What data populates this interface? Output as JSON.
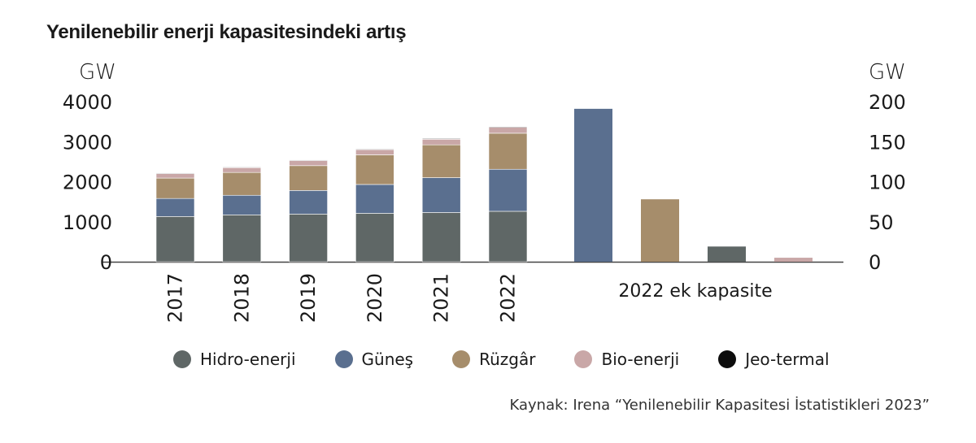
{
  "title": "Yenilenebilir enerji kapasitesindeki artış",
  "source": "Kaynak: Irena “Yenilenebilir Kapasitesi İstatistikleri 2023”",
  "chart_data": {
    "type": "bar",
    "left_axis": {
      "unit": "GW",
      "ylim": [
        0,
        4000
      ],
      "ticks": [
        "0",
        "1000",
        "2000",
        "3000",
        "4000"
      ]
    },
    "right_axis": {
      "unit": "GW",
      "ylim": [
        0,
        200
      ],
      "ticks": [
        "0",
        "50",
        "100",
        "150",
        "200"
      ]
    },
    "categories": [
      "2017",
      "2018",
      "2019",
      "2020",
      "2021",
      "2022"
    ],
    "series": [
      {
        "name": "Hidro-enerji",
        "color": "#5f6766",
        "values": [
          1130,
          1170,
          1190,
          1210,
          1230,
          1260
        ]
      },
      {
        "name": "Güneş",
        "color": "#5a6f8f",
        "values": [
          450,
          490,
          590,
          720,
          870,
          1050
        ]
      },
      {
        "name": "Rüzgâr",
        "color": "#a68d6b",
        "values": [
          510,
          570,
          620,
          740,
          820,
          900
        ]
      },
      {
        "name": "Bio-enerji",
        "color": "#c9a7a7",
        "values": [
          110,
          120,
          125,
          130,
          140,
          150
        ]
      },
      {
        "name": "Jeo-termal",
        "color": "#0d0d0d",
        "values": [
          14,
          14,
          14,
          14,
          16,
          16
        ]
      }
    ],
    "additions_2022": {
      "label": "2022 ek kapasite",
      "axis": "right",
      "bars": [
        {
          "name": "Güneş",
          "color": "#5a6f8f",
          "value": 191
        },
        {
          "name": "Rüzgâr",
          "color": "#a68d6b",
          "value": 78
        },
        {
          "name": "Hidro-enerji",
          "color": "#5f6766",
          "value": 19
        },
        {
          "name": "Bio-enerji",
          "color": "#c9a7a7",
          "value": 5
        }
      ]
    },
    "legend": {
      "position": "bottom"
    }
  }
}
